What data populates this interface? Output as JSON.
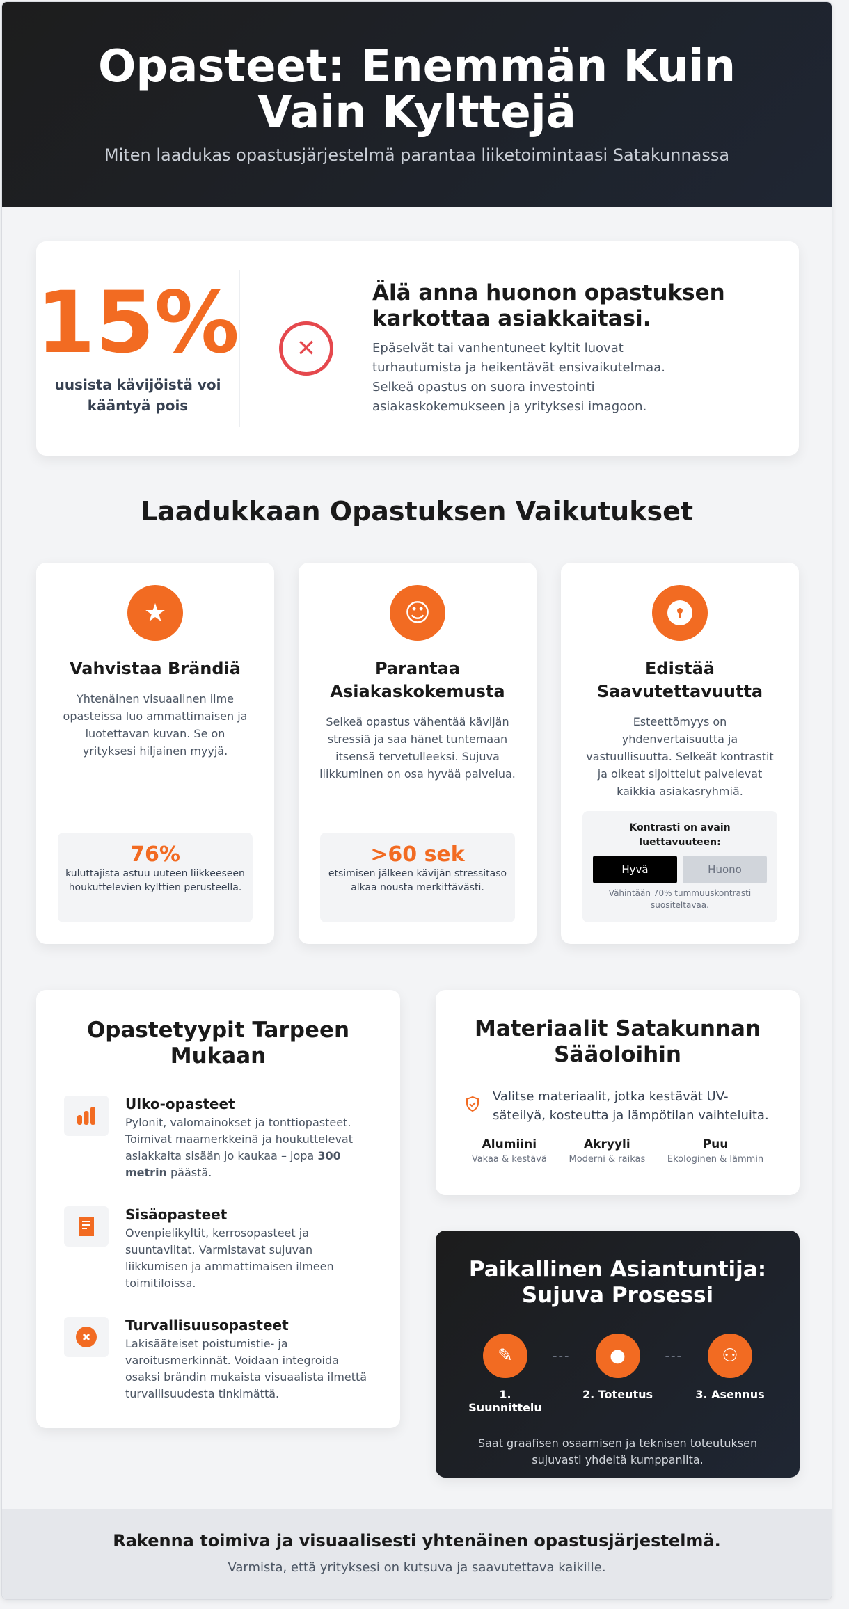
{
  "header": {
    "title": "Opasteet: Enemmän Kuin Vain Kylttejä",
    "subtitle": "Miten laadukas opastusjärjestelmä parantaa liiketoimintaasi Satakunnassa"
  },
  "intro": {
    "stat": "15%",
    "stat_label": "uusista kävijöistä voi kääntyä pois",
    "icon": "x-circle-icon",
    "title": "Älä anna huonon opastuksen karkottaa asiakkaitasi.",
    "text": "Epäselvät tai vanhentuneet kyltit luovat turhautumista ja heikentävät ensivaikutelmaa. Selkeä opastus on suora investointi asiakaskokemukseen ja yrityksesi imagoon."
  },
  "effects": {
    "title": "Laadukkaan Opastuksen Vaikutukset",
    "cards": [
      {
        "icon": "star-icon",
        "title": "Vahvistaa Brändiä",
        "text": "Yhtenäinen visuaalinen ilme opasteissa luo ammattimaisen ja luotettavan kuvan. Se on yrityksesi hiljainen myyjä.",
        "stat": "76%",
        "stat_text": "kuluttajista astuu uuteen liikkeeseen houkuttelevien kylttien perusteella."
      },
      {
        "icon": "smile-icon",
        "title": "Parantaa Asiakaskokemusta",
        "text": "Selkeä opastus vähentää kävijän stressiä ja saa hänet tuntemaan itsensä tervetulleeksi. Sujuva liikkuminen on osa hyvää palvelua.",
        "stat": ">60 sek",
        "stat_text": "etsimisen jälkeen kävijän stressitaso alkaa nousta merkittävästi."
      },
      {
        "icon": "keyhole-icon",
        "title": "Edistää Saavutettavuutta",
        "text": "Esteettömyys on yhdenvertaisuutta ja vastuullisuutta. Selkeät kontrastit ja oikeat sijoittelut palvelevat kaikkia asiakasryhmiä.",
        "contrast_title": "Kontrasti on avain luettavuuteen:",
        "good": "Hyvä",
        "bad": "Huono",
        "note": "Vähintään 70% tummuuskontrasti suositeltavaa."
      }
    ]
  },
  "types": {
    "title": "Opastetyypit Tarpeen Mukaan",
    "items": [
      {
        "icon": "signal-bars-icon",
        "title": "Ulko-opasteet",
        "text_before": "Pylonit, valomainokset ja tonttiopasteet. Toimivat maamerkkeinä ja houkuttelevat asiakkaita sisään jo kaukaa – jopa ",
        "bold": "300 metrin",
        "text_after": " päästä."
      },
      {
        "icon": "scroll-icon",
        "title": "Sisäopasteet",
        "text": "Ovenpielikyltit, kerrosopasteet ja suuntaviitat. Varmistavat sujuvan liikkumisen ja ammattimaisen ilmeen toimitiloissa."
      },
      {
        "icon": "x-circle-icon",
        "title": "Turvallisuusopasteet",
        "text": "Lakisääteiset poistumistie- ja varoitusmerkinnät. Voidaan integroida osaksi brändin mukaista visuaalista ilmettä turvallisuudesta tinkimättä."
      }
    ]
  },
  "materials": {
    "title": "Materiaalit Satakunnan Sääoloihin",
    "icon": "shield-check-icon",
    "text": "Valitse materiaalit, jotka kestävät UV-säteilyä, kosteutta ja lämpötilan vaihteluita.",
    "items": [
      {
        "name": "Alumiini",
        "desc": "Vakaa & kestävä"
      },
      {
        "name": "Akryyli",
        "desc": "Moderni & raikas"
      },
      {
        "name": "Puu",
        "desc": "Ekologinen & lämmin"
      }
    ]
  },
  "process": {
    "title": "Paikallinen Asiantuntija: Sujuva Prosessi",
    "separator": "---",
    "steps": [
      {
        "icon": "edit-icon",
        "label": "1. Suunnittelu"
      },
      {
        "icon": "paint-icon",
        "label": "2. Toteutus"
      },
      {
        "icon": "team-icon",
        "label": "3. Asennus"
      }
    ],
    "text": "Saat graafisen osaamisen ja teknisen toteutuksen sujuvasti yhdeltä kumppanilta."
  },
  "footer": {
    "title": "Rakenna toimiva ja visuaalisesti yhtenäinen opastusjärjestelmä.",
    "subtitle": "Varmista, että yrityksesi on kutsuva ja saavutettava kaikille."
  },
  "colors": {
    "accent": "#f26b22",
    "dark": "#1f2633",
    "danger": "#e5484d"
  }
}
